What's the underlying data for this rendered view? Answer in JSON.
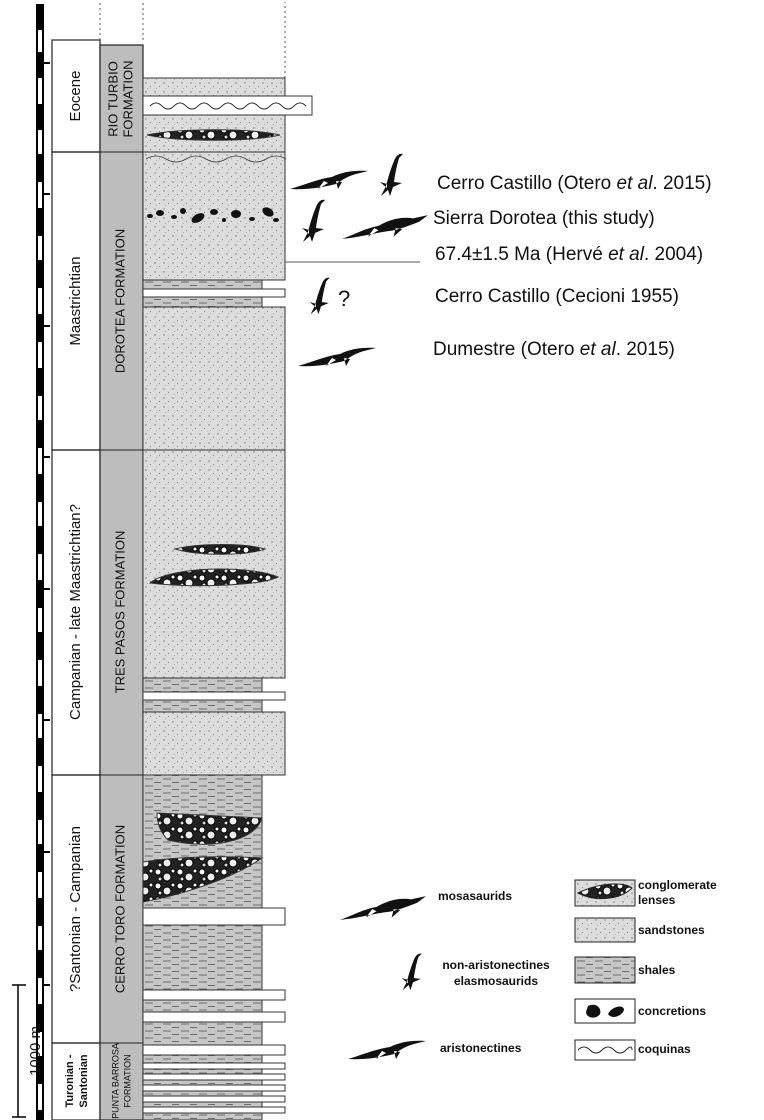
{
  "ages": [
    [
      "Eocene"
    ],
    [
      "Maastrichtian"
    ],
    [
      "Campanian - late Maastrichtian?"
    ],
    [
      "?Santonian - Campanian"
    ],
    [
      "Turonian -",
      "Santonian"
    ]
  ],
  "formations": [
    [
      "RIO TURBIO",
      "FORMATION"
    ],
    [
      "DOROTEA FORMATION"
    ],
    [
      "TRES PASOS FORMATION"
    ],
    [
      "CERRO TORO FORMATION"
    ],
    [
      "PUNTA BARROSA",
      "FORMATION"
    ]
  ],
  "scale_bar": "1000 m",
  "occurrences": [
    {
      "pre": "Cerro Castillo (Otero ",
      "italic": "et al",
      "post": ". 2015)"
    },
    {
      "pre": "Sierra Dorotea (this study)"
    },
    {
      "pre": "67.4±1.5 Ma (Hervé ",
      "italic": "et al",
      "post": ". 2004)"
    },
    {
      "pre": "Cerro Castillo (Cecioni 1955)"
    },
    {
      "pre": "Dumestre (Otero ",
      "italic": "et al",
      "post": ". 2015)"
    }
  ],
  "uncertain_mark": "?",
  "legend": {
    "fauna": [
      [
        "mosasaurids"
      ],
      [
        "non-aristonectines",
        "elasmosaurids"
      ],
      [
        "aristonectines"
      ]
    ],
    "lithology": [
      [
        "conglomerate",
        "lenses"
      ],
      [
        "sandstones"
      ],
      [
        "shales"
      ],
      [
        "concretions"
      ],
      [
        "coquinas"
      ]
    ]
  }
}
